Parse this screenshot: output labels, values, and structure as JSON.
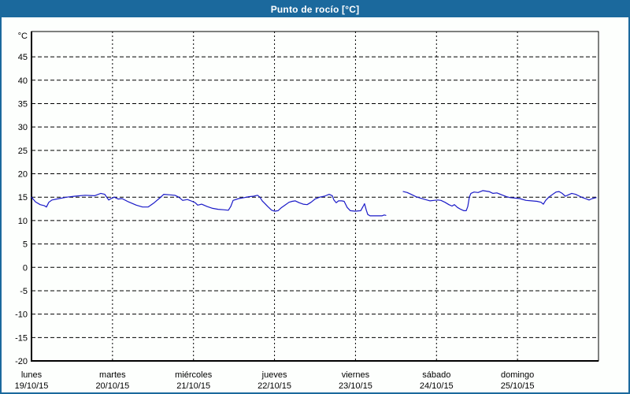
{
  "title_bar": {
    "title": "Punto de rocío [°C]"
  },
  "colors": {
    "accent_blue": "#1b699d",
    "title_text": "#ffffff",
    "plot_background": "#fdfffd",
    "axis_black": "#000000",
    "grid_black": "#000000",
    "line_blue": "#1a1ac8"
  },
  "chart_data": {
    "type": "line",
    "title": "Punto de rocío [°C]",
    "unit_label": "°C",
    "legend": "none",
    "grid": "dashed",
    "y_axis": {
      "min": -20,
      "max": 50.4,
      "tick_step": 5,
      "tick_values": [
        45,
        40,
        35,
        30,
        25,
        20,
        15,
        10,
        5,
        0,
        -5,
        -10,
        -15,
        -20
      ]
    },
    "x_axis": {
      "span_days": 7,
      "gridlines_at_day_boundaries": true,
      "day_labels": [
        {
          "weekday": "lunes",
          "date": "19/10/15"
        },
        {
          "weekday": "martes",
          "date": "20/10/15"
        },
        {
          "weekday": "miércoles",
          "date": "21/10/15"
        },
        {
          "weekday": "jueves",
          "date": "22/10/15"
        },
        {
          "weekday": "viernes",
          "date": "23/10/15"
        },
        {
          "weekday": "sábado",
          "date": "24/10/15"
        },
        {
          "weekday": "domingo",
          "date": "25/10/15"
        }
      ]
    },
    "series": [
      {
        "name": "punto de rocío",
        "color": "#1a1ac8",
        "note": "x = days since Monday 00:00, y = °C; gap Friday morning–midday",
        "segments": [
          [
            [
              0,
              15.0
            ],
            [
              0.049,
              14.0
            ],
            [
              0.107,
              13.4
            ],
            [
              0.156,
              13.2
            ],
            [
              0.185,
              12.9
            ],
            [
              0.214,
              13.9
            ],
            [
              0.253,
              14.4
            ],
            [
              0.34,
              14.7
            ],
            [
              0.437,
              15.0
            ],
            [
              0.535,
              15.2
            ],
            [
              0.661,
              15.4
            ],
            [
              0.778,
              15.3
            ],
            [
              0.856,
              15.8
            ],
            [
              0.904,
              15.6
            ],
            [
              0.953,
              14.4
            ],
            [
              0.982,
              14.7
            ],
            [
              1.021,
              15.0
            ],
            [
              1.069,
              14.6
            ],
            [
              1.118,
              14.7
            ],
            [
              1.196,
              14.0
            ],
            [
              1.293,
              13.3
            ],
            [
              1.371,
              12.9
            ],
            [
              1.439,
              12.9
            ],
            [
              1.507,
              13.7
            ],
            [
              1.575,
              14.7
            ],
            [
              1.633,
              15.6
            ],
            [
              1.702,
              15.5
            ],
            [
              1.769,
              15.4
            ],
            [
              1.818,
              15.0
            ],
            [
              1.867,
              14.3
            ],
            [
              1.925,
              14.5
            ],
            [
              1.983,
              14.1
            ],
            [
              2.022,
              13.8
            ],
            [
              2.051,
              13.3
            ],
            [
              2.1,
              13.5
            ],
            [
              2.168,
              13.0
            ],
            [
              2.236,
              12.6
            ],
            [
              2.304,
              12.4
            ],
            [
              2.372,
              12.3
            ],
            [
              2.431,
              12.2
            ],
            [
              2.46,
              13.0
            ],
            [
              2.489,
              14.3
            ],
            [
              2.557,
              14.7
            ],
            [
              2.625,
              14.9
            ],
            [
              2.683,
              15.1
            ],
            [
              2.742,
              15.2
            ],
            [
              2.79,
              15.4
            ],
            [
              2.819,
              15.0
            ],
            [
              2.849,
              14.2
            ],
            [
              2.878,
              13.7
            ],
            [
              2.917,
              13.0
            ],
            [
              2.965,
              12.2
            ],
            [
              3.004,
              12.0
            ],
            [
              3.043,
              12.1
            ],
            [
              3.082,
              12.7
            ],
            [
              3.131,
              13.3
            ],
            [
              3.179,
              13.9
            ],
            [
              3.218,
              14.1
            ],
            [
              3.257,
              14.2
            ],
            [
              3.306,
              13.8
            ],
            [
              3.354,
              13.5
            ],
            [
              3.403,
              13.4
            ],
            [
              3.451,
              13.9
            ],
            [
              3.5,
              14.6
            ],
            [
              3.558,
              15.0
            ],
            [
              3.617,
              15.2
            ],
            [
              3.675,
              15.6
            ],
            [
              3.714,
              15.3
            ],
            [
              3.733,
              14.4
            ],
            [
              3.762,
              13.8
            ],
            [
              3.791,
              14.2
            ],
            [
              3.83,
              14.2
            ],
            [
              3.86,
              14.1
            ],
            [
              3.898,
              12.8
            ],
            [
              3.937,
              12.1
            ],
            [
              3.996,
              12.0
            ],
            [
              4.064,
              12.1
            ],
            [
              4.093,
              13.0
            ],
            [
              4.112,
              13.6
            ],
            [
              4.132,
              12.3
            ],
            [
              4.151,
              11.3
            ],
            [
              4.18,
              11.0
            ],
            [
              4.277,
              11.0
            ],
            [
              4.326,
              11.0
            ],
            [
              4.355,
              11.2
            ],
            [
              4.374,
              11.1
            ]
          ],
          [
            [
              4.589,
              16.2
            ],
            [
              4.638,
              16.0
            ],
            [
              4.686,
              15.6
            ],
            [
              4.745,
              15.1
            ],
            [
              4.803,
              14.8
            ],
            [
              4.861,
              14.5
            ],
            [
              4.92,
              14.2
            ],
            [
              4.968,
              14.3
            ],
            [
              5.017,
              14.4
            ],
            [
              5.056,
              14.3
            ],
            [
              5.104,
              13.9
            ],
            [
              5.153,
              13.4
            ],
            [
              5.192,
              13.1
            ],
            [
              5.221,
              13.4
            ],
            [
              5.26,
              12.8
            ],
            [
              5.299,
              12.4
            ],
            [
              5.338,
              12.1
            ],
            [
              5.367,
              12.1
            ],
            [
              5.386,
              13.0
            ],
            [
              5.406,
              15.0
            ],
            [
              5.425,
              15.8
            ],
            [
              5.464,
              16.1
            ],
            [
              5.513,
              16.0
            ],
            [
              5.571,
              16.4
            ],
            [
              5.61,
              16.3
            ],
            [
              5.649,
              16.2
            ],
            [
              5.697,
              15.8
            ],
            [
              5.746,
              15.9
            ],
            [
              5.804,
              15.5
            ],
            [
              5.863,
              15.1
            ],
            [
              5.911,
              14.9
            ],
            [
              5.969,
              14.8
            ],
            [
              6.028,
              14.7
            ],
            [
              6.106,
              14.3
            ],
            [
              6.174,
              14.2
            ],
            [
              6.242,
              14.1
            ],
            [
              6.29,
              13.9
            ],
            [
              6.319,
              13.5
            ],
            [
              6.348,
              14.3
            ],
            [
              6.387,
              15.0
            ],
            [
              6.426,
              15.5
            ],
            [
              6.475,
              16.1
            ],
            [
              6.513,
              16.2
            ],
            [
              6.552,
              15.8
            ],
            [
              6.591,
              15.2
            ],
            [
              6.63,
              15.5
            ],
            [
              6.669,
              15.8
            ],
            [
              6.717,
              15.6
            ],
            [
              6.766,
              15.2
            ],
            [
              6.805,
              14.9
            ],
            [
              6.854,
              14.6
            ],
            [
              6.883,
              14.4
            ],
            [
              6.922,
              14.7
            ],
            [
              6.971,
              14.9
            ]
          ]
        ]
      }
    ]
  }
}
